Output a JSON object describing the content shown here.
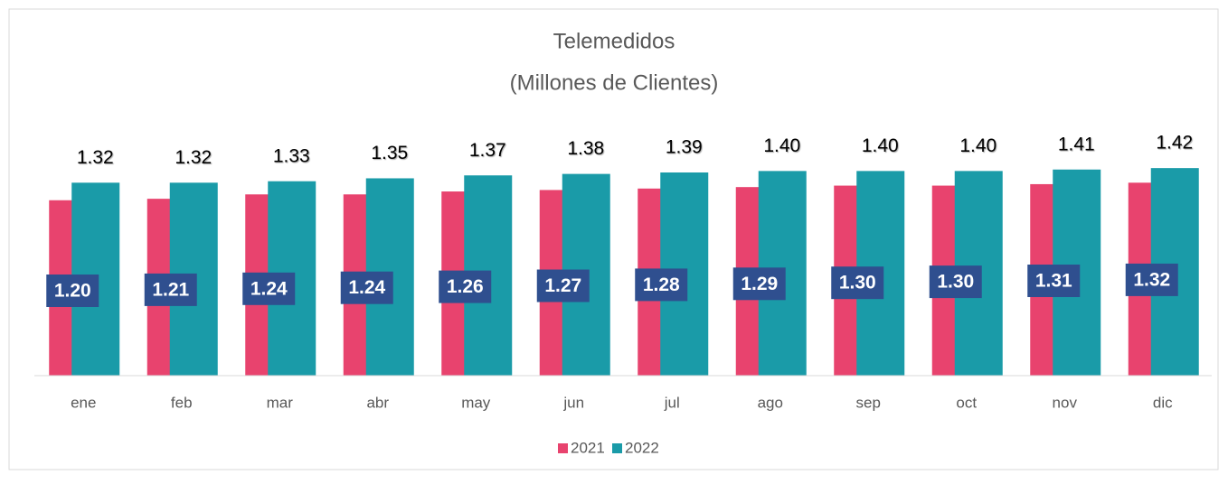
{
  "chart_data": {
    "type": "bar",
    "title": "Telemedidos",
    "subtitle": "(Millones de Clientes)",
    "categories": [
      "ene",
      "feb",
      "mar",
      "abr",
      "may",
      "jun",
      "jul",
      "ago",
      "sep",
      "oct",
      "nov",
      "dic"
    ],
    "series": [
      {
        "name": "2021",
        "color": "#e8436e",
        "values": [
          1.2,
          1.21,
          1.24,
          1.24,
          1.26,
          1.27,
          1.28,
          1.29,
          1.3,
          1.3,
          1.31,
          1.32
        ],
        "value_labels": [
          "1.20",
          "1.21",
          "1.24",
          "1.24",
          "1.26",
          "1.27",
          "1.28",
          "1.29",
          "1.30",
          "1.30",
          "1.31",
          "1.32"
        ]
      },
      {
        "name": "2022",
        "color": "#1a9ba8",
        "values": [
          1.32,
          1.32,
          1.33,
          1.35,
          1.37,
          1.38,
          1.39,
          1.4,
          1.4,
          1.4,
          1.41,
          1.42
        ],
        "value_labels": [
          "1.32",
          "1.32",
          "1.33",
          "1.35",
          "1.37",
          "1.38",
          "1.39",
          "1.40",
          "1.40",
          "1.40",
          "1.41",
          "1.42"
        ]
      }
    ],
    "ylim": [
      0,
      1.6
    ],
    "legend": "bottom"
  }
}
